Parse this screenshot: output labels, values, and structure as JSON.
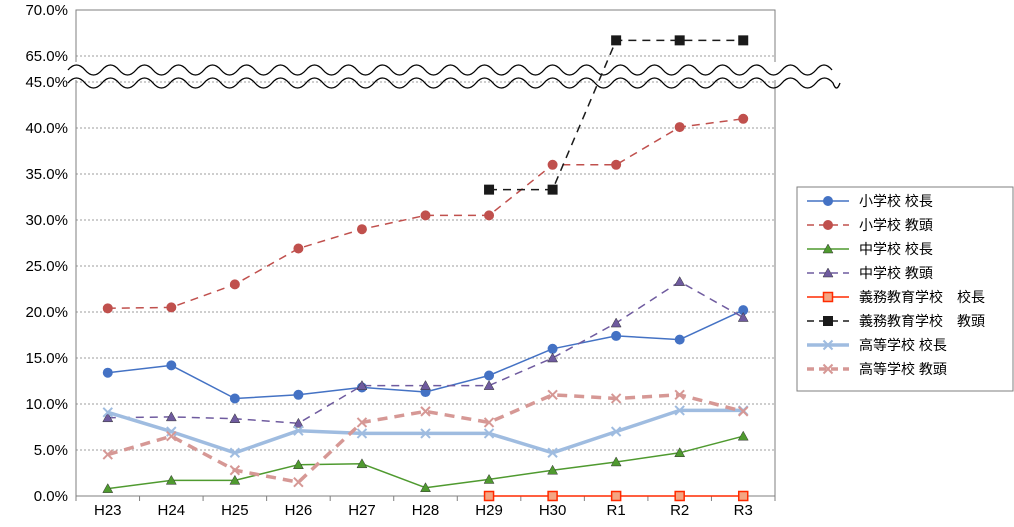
{
  "chart_data": {
    "type": "line",
    "title": "",
    "xlabel": "",
    "ylabel": "",
    "categories": [
      "H23",
      "H24",
      "H25",
      "H26",
      "H27",
      "H28",
      "H29",
      "H30",
      "R1",
      "R2",
      "R3"
    ],
    "y_ticks_lower": [
      "0.0%",
      "5.0%",
      "10.0%",
      "15.0%",
      "20.0%",
      "25.0%",
      "30.0%",
      "35.0%",
      "40.0%",
      "45.0%"
    ],
    "y_ticks_upper": [
      "65.0%",
      "70.0%"
    ],
    "ylim_lower": [
      0,
      45
    ],
    "ylim_upper": [
      65,
      70
    ],
    "axis_break": true,
    "grid": true,
    "legend_position": "right",
    "series": [
      {
        "name": "小学校 校長",
        "color": "#4472c4",
        "dash": "solid",
        "marker": "circle",
        "width": 1.5,
        "values": [
          13.4,
          14.2,
          10.6,
          11.0,
          11.8,
          11.3,
          13.1,
          16.0,
          17.4,
          17.0,
          20.2
        ]
      },
      {
        "name": "小学校 教頭",
        "color": "#c0504d",
        "dash": "dashed",
        "marker": "circle",
        "width": 1.5,
        "values": [
          20.4,
          20.5,
          23.0,
          26.9,
          29.0,
          30.5,
          30.5,
          36.0,
          36.0,
          40.1,
          41.0
        ]
      },
      {
        "name": "中学校 校長",
        "color": "#4f9a2f",
        "dash": "solid",
        "marker": "triangle",
        "width": 1.5,
        "values": [
          0.8,
          1.7,
          1.7,
          3.4,
          3.5,
          0.9,
          1.8,
          2.8,
          3.7,
          4.7,
          6.5
        ]
      },
      {
        "name": "中学校 教頭",
        "color": "#6f5b9f",
        "dash": "dashed",
        "marker": "triangle",
        "width": 1.5,
        "values": [
          8.5,
          8.6,
          8.4,
          7.9,
          12.0,
          12.0,
          12.0,
          15.0,
          18.8,
          23.3,
          19.4
        ]
      },
      {
        "name": "義務教育学校　校長",
        "color": "#ff2a00",
        "dash": "solid",
        "marker": "square",
        "width": 1.5,
        "values": [
          null,
          null,
          null,
          null,
          null,
          null,
          0.0,
          0.0,
          0.0,
          0.0,
          0.0
        ]
      },
      {
        "name": "義務教育学校　教頭",
        "color": "#1a1a1a",
        "dash": "dashed",
        "marker": "square",
        "width": 1.5,
        "values": [
          null,
          null,
          null,
          null,
          null,
          null,
          33.3,
          33.3,
          66.7,
          66.7,
          66.7
        ]
      },
      {
        "name": "高等学校 校長",
        "color": "#9fbce0",
        "dash": "solid",
        "marker": "x",
        "width": 3.5,
        "values": [
          9.1,
          7.0,
          4.7,
          7.1,
          6.8,
          6.8,
          6.8,
          4.7,
          7.0,
          9.3,
          9.3
        ]
      },
      {
        "name": "高等学校 教頭",
        "color": "#d69895",
        "dash": "dashed",
        "marker": "x",
        "width": 3.5,
        "values": [
          4.5,
          6.5,
          2.8,
          1.5,
          8.0,
          9.2,
          8.0,
          11.0,
          10.6,
          11.0,
          9.2
        ]
      }
    ]
  }
}
